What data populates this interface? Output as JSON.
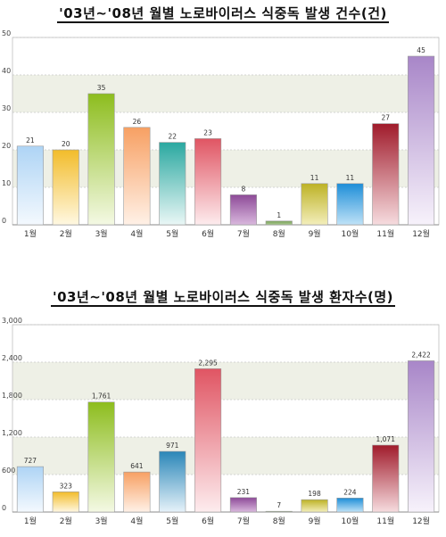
{
  "chart_data": [
    {
      "type": "bar",
      "title": "'03년~'08년 월별 노로바이러스 식중독 발생 건수(건)",
      "categories": [
        "1월",
        "2월",
        "3월",
        "4월",
        "5월",
        "6월",
        "7월",
        "8월",
        "9월",
        "10월",
        "11월",
        "12월"
      ],
      "values": [
        21,
        20,
        35,
        26,
        22,
        23,
        8,
        1,
        11,
        11,
        27,
        45
      ],
      "value_labels": [
        "21",
        "20",
        "35",
        "26",
        "22",
        "23",
        "8",
        "1",
        "11",
        "11",
        "27",
        "45"
      ],
      "ylim": [
        0,
        50
      ],
      "yticks": [
        "0",
        "10",
        "20",
        "30",
        "40",
        "50"
      ],
      "ytick_values": [
        0,
        10,
        20,
        30,
        40,
        50
      ],
      "grid": true,
      "colors": [
        [
          "#aed4f5",
          "#f4f9fe"
        ],
        [
          "#f2bc2a",
          "#fff8e2"
        ],
        [
          "#8dbd1e",
          "#f4f9e4"
        ],
        [
          "#f7a063",
          "#fff1e7"
        ],
        [
          "#2aa8a0",
          "#eaf7f6"
        ],
        [
          "#e05563",
          "#fdecee"
        ],
        [
          "#8d4a98",
          "#d9b8dd"
        ],
        [
          "#7aa25a",
          "#aac890"
        ],
        [
          "#bdb225",
          "#f3eebb"
        ],
        [
          "#1e8ed8",
          "#bfe2f7"
        ],
        [
          "#a01b2b",
          "#f6dcdf"
        ],
        [
          "#a886c8",
          "#f7f2fb"
        ]
      ]
    },
    {
      "type": "bar",
      "title": "'03년~'08년 월별 노로바이러스 식중독 발생 환자수(명)",
      "categories": [
        "1월",
        "2월",
        "3월",
        "4월",
        "5월",
        "6월",
        "7월",
        "8월",
        "9월",
        "10월",
        "11월",
        "12월"
      ],
      "values": [
        727,
        323,
        1761,
        641,
        971,
        2295,
        231,
        7,
        198,
        224,
        1071,
        2422
      ],
      "value_labels": [
        "727",
        "323",
        "1,761",
        "641",
        "971",
        "2,295",
        "231",
        "7",
        "198",
        "224",
        "1,071",
        "2,422"
      ],
      "ylim": [
        0,
        3000
      ],
      "yticks": [
        "0",
        "600",
        "1,200",
        "1,800",
        "2,400",
        "3,000"
      ],
      "ytick_values": [
        0,
        600,
        1200,
        1800,
        2400,
        3000
      ],
      "grid": true,
      "colors": [
        [
          "#aed4f5",
          "#f4f9fe"
        ],
        [
          "#f2bc2a",
          "#fff8e2"
        ],
        [
          "#8dbd1e",
          "#f4f9e4"
        ],
        [
          "#f7a063",
          "#fff1e7"
        ],
        [
          "#2a86b8",
          "#e6f2f9"
        ],
        [
          "#e05563",
          "#fdecee"
        ],
        [
          "#8d4a98",
          "#d9b8dd"
        ],
        [
          "#7aa25a",
          "#aac890"
        ],
        [
          "#bdb225",
          "#f3eebb"
        ],
        [
          "#1e8ed8",
          "#bfe2f7"
        ],
        [
          "#a01b2b",
          "#f6dcdf"
        ],
        [
          "#a886c8",
          "#f7f2fb"
        ]
      ]
    }
  ]
}
